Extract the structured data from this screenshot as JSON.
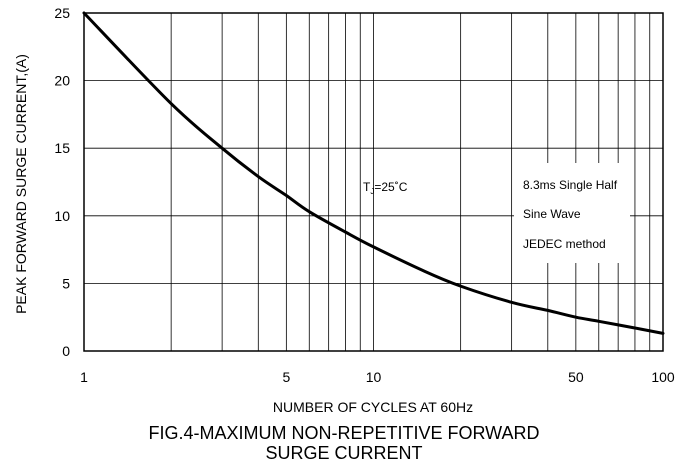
{
  "chart_data": {
    "type": "line",
    "xscale": "log",
    "xlim": [
      1,
      100
    ],
    "ylim": [
      0,
      25
    ],
    "x_ticks": [
      1,
      5,
      10,
      50,
      100
    ],
    "y_ticks": [
      0,
      5,
      10,
      15,
      20,
      25
    ],
    "grid": true,
    "xlabel": "NUMBER OF CYCLES AT 60Hz",
    "ylabel": "PEAK FORWARD SURGE CURRENT,(A)",
    "series": [
      {
        "x": [
          1,
          2,
          3,
          4,
          5,
          6,
          8,
          10,
          15,
          20,
          30,
          40,
          50,
          60,
          80,
          100
        ],
        "y": [
          25,
          18.3,
          15,
          12.9,
          11.5,
          10.3,
          8.8,
          7.7,
          5.9,
          4.8,
          3.6,
          3.0,
          2.5,
          2.2,
          1.7,
          1.3
        ]
      }
    ],
    "annotations": {
      "temperature": {
        "prefix": "T",
        "subscript": "J",
        "suffix": "=25˚C"
      },
      "conditions": [
        "8.3ms Single Half",
        "Sine Wave",
        "JEDEC method"
      ]
    }
  },
  "caption": {
    "line1": "FIG.4-MAXIMUM NON-REPETITIVE FORWARD",
    "line2": "SURGE CURRENT"
  }
}
